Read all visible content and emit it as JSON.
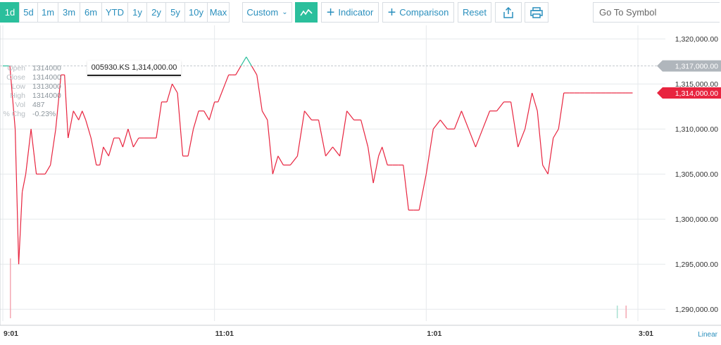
{
  "toolbar": {
    "ranges": [
      {
        "label": "1d",
        "active": true
      },
      {
        "label": "5d",
        "active": false
      },
      {
        "label": "1m",
        "active": false
      },
      {
        "label": "3m",
        "active": false
      },
      {
        "label": "6m",
        "active": false
      },
      {
        "label": "YTD",
        "active": false
      },
      {
        "label": "1y",
        "active": false
      },
      {
        "label": "2y",
        "active": false
      },
      {
        "label": "5y",
        "active": false
      },
      {
        "label": "10y",
        "active": false
      },
      {
        "label": "Max",
        "active": false
      }
    ],
    "custom_label": "Custom",
    "indicator_label": "Indicator",
    "comparison_label": "Comparison",
    "reset_label": "Reset",
    "symbol_placeholder": "Go To Symbol",
    "icons": {
      "chart_type": "line-chart-icon",
      "share": "share-icon",
      "print": "print-icon",
      "go": "arrow-right-icon"
    }
  },
  "ohlc": {
    "open_label": "Open",
    "open": "1314000",
    "close_label": "Close",
    "close": "1314000",
    "low_label": "Low",
    "low": "1313000",
    "high_label": "High",
    "high": "1314000",
    "vol_label": "Vol",
    "vol": "487",
    "chg_label": "% Chg",
    "chg": "-0.23%"
  },
  "tooltip": "005930.KS 1,314,000.00",
  "scale_label": "Linear",
  "colors": {
    "up": "#2bbf9c",
    "down": "#e8243f",
    "accent": "#2bbf9c",
    "link": "#2a8fbd",
    "grid": "#e6e9ec",
    "prev_close": "#b0b6bc"
  },
  "chart_data": {
    "type": "line",
    "ylim": [
      1289000,
      1321500
    ],
    "yticks": [
      1290000,
      1295000,
      1300000,
      1305000,
      1310000,
      1315000,
      1320000
    ],
    "ytick_labels": [
      "1,290,000.00",
      "1,295,000.00",
      "1,300,000.00",
      "1,305,000.00",
      "1,310,000.00",
      "1,315,000.00",
      "1,320,000.00"
    ],
    "xticks": [
      "9:01",
      "11:01",
      "1:01",
      "3:01"
    ],
    "previous_close": {
      "value": 1317000,
      "label": "1,317,000.00"
    },
    "current": {
      "value": 1314000,
      "label": "1,314,000.00"
    },
    "times": [
      "9:01",
      "9:05",
      "9:08",
      "9:10",
      "9:12",
      "9:14",
      "9:17",
      "9:20",
      "9:22",
      "9:25",
      "9:28",
      "9:31",
      "9:34",
      "9:36",
      "9:38",
      "9:41",
      "9:44",
      "9:46",
      "9:48",
      "9:51",
      "9:54",
      "9:56",
      "9:58",
      "10:01",
      "10:04",
      "10:07",
      "10:09",
      "10:12",
      "10:15",
      "10:18",
      "10:21",
      "10:24",
      "10:28",
      "10:31",
      "10:34",
      "10:37",
      "10:40",
      "10:43",
      "10:46",
      "10:49",
      "10:52",
      "10:55",
      "10:58",
      "11:01",
      "11:03",
      "11:05",
      "11:07",
      "11:09",
      "11:11",
      "11:13",
      "11:16",
      "11:19",
      "11:22",
      "11:25",
      "11:28",
      "11:31",
      "11:34",
      "11:37",
      "11:40",
      "11:44",
      "11:48",
      "11:52",
      "11:56",
      "12:00",
      "12:04",
      "12:08",
      "12:12",
      "12:16",
      "12:20",
      "12:24",
      "12:28",
      "12:31",
      "12:34",
      "12:36",
      "12:39",
      "12:42",
      "12:45",
      "12:48",
      "12:51",
      "12:54",
      "12:57",
      "1:01",
      "1:05",
      "1:09",
      "1:13",
      "1:17",
      "1:21",
      "1:25",
      "1:29",
      "1:33",
      "1:37",
      "1:41",
      "1:45",
      "1:49",
      "1:53",
      "1:57",
      "2:01",
      "2:04",
      "2:07",
      "2:10",
      "2:13",
      "2:16",
      "2:19",
      "2:22",
      "2:25",
      "2:28",
      "2:31",
      "2:34",
      "2:37",
      "2:40",
      "2:43",
      "2:46",
      "2:49",
      "2:52",
      "2:54",
      "2:56",
      "2:58"
    ],
    "values": [
      1317000,
      1317000,
      1310000,
      1295000,
      1303000,
      1305000,
      1310000,
      1305000,
      1305000,
      1305000,
      1306000,
      1310000,
      1316000,
      1316000,
      1309000,
      1312000,
      1311000,
      1312000,
      1311000,
      1309000,
      1306000,
      1306000,
      1308000,
      1307000,
      1309000,
      1309000,
      1308000,
      1310000,
      1308000,
      1309000,
      1309000,
      1309000,
      1309000,
      1313000,
      1313000,
      1315000,
      1314000,
      1307000,
      1307000,
      1310000,
      1312000,
      1312000,
      1311000,
      1313000,
      1313000,
      1314000,
      1315000,
      1316000,
      1316000,
      1316000,
      1317000,
      1318000,
      1317000,
      1316000,
      1312000,
      1311000,
      1305000,
      1307000,
      1306000,
      1306000,
      1307000,
      1312000,
      1311000,
      1311000,
      1307000,
      1308000,
      1307000,
      1312000,
      1311000,
      1311000,
      1308000,
      1304000,
      1307000,
      1308000,
      1306000,
      1306000,
      1306000,
      1306000,
      1301000,
      1301000,
      1301000,
      1305000,
      1310000,
      1311000,
      1310000,
      1310000,
      1312000,
      1310000,
      1308000,
      1310000,
      1312000,
      1312000,
      1313000,
      1313000,
      1308000,
      1310000,
      1314000,
      1312000,
      1306000,
      1305000,
      1309000,
      1310000,
      1314000,
      1314000,
      1314000,
      1314000,
      1314000,
      1314000,
      1314000,
      1314000,
      1314000,
      1314000,
      1314000,
      1314000,
      1314000,
      1314000,
      1314000
    ],
    "volume_bars": [
      {
        "time": "9:05",
        "value": 0.85,
        "color": "#f4a8b3"
      },
      {
        "time": "2:49",
        "value": 0.18,
        "color": "#a8e0d2"
      },
      {
        "time": "2:54",
        "value": 0.18,
        "color": "#f4a8b3"
      }
    ]
  }
}
